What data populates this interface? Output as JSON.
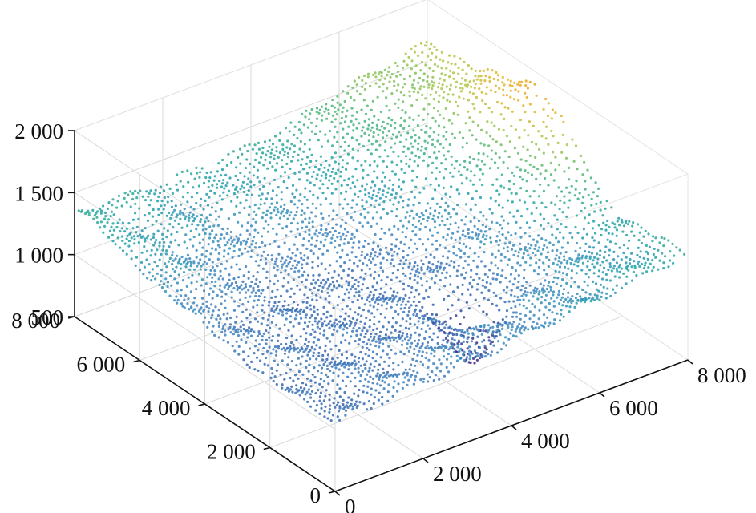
{
  "chart_data": {
    "type": "scatter",
    "title": "",
    "xlabel": "",
    "ylabel": "",
    "zlabel": "",
    "projection": "3d",
    "grid": true,
    "xlim": [
      0,
      8000
    ],
    "ylim": [
      0,
      8000
    ],
    "zlim": [
      500,
      2000
    ],
    "x_ticks": [
      0,
      2000,
      4000,
      6000,
      8000
    ],
    "x_tick_labels": [
      "0",
      "2 000",
      "4 000",
      "6 000",
      "8 000"
    ],
    "y_ticks": [
      0,
      2000,
      4000,
      6000,
      8000
    ],
    "y_tick_labels": [
      "0",
      "2 000",
      "4 000",
      "6 000",
      "8 000"
    ],
    "z_ticks": [
      500,
      1000,
      1500,
      2000
    ],
    "z_tick_labels": [
      "500",
      "1 000",
      "1 500",
      "2 000"
    ],
    "colormap": [
      "#3b2a86",
      "#2e56a8",
      "#3f86c2",
      "#1fa3a8",
      "#4bb67a",
      "#a9c94a",
      "#e8b42b",
      "#f39a22"
    ],
    "surface_elevation_samples": {
      "x": [
        0,
        2000,
        4000,
        6000,
        8000
      ],
      "y": [
        0,
        2000,
        4000,
        6000,
        8000
      ],
      "z_rows_by_y": [
        [
          1020,
          1130,
          1180,
          1240,
          1380
        ],
        [
          1070,
          1060,
          1090,
          1160,
          1290
        ],
        [
          1120,
          1050,
          1060,
          1180,
          1350
        ],
        [
          1260,
          1160,
          1190,
          1420,
          1720
        ],
        [
          1380,
          1320,
          1380,
          1560,
          1650
        ]
      ]
    },
    "peak": {
      "x": 8000,
      "y": 4200,
      "z": 2000
    },
    "depression": {
      "x": 4400,
      "y": 1800,
      "z": 560
    }
  }
}
